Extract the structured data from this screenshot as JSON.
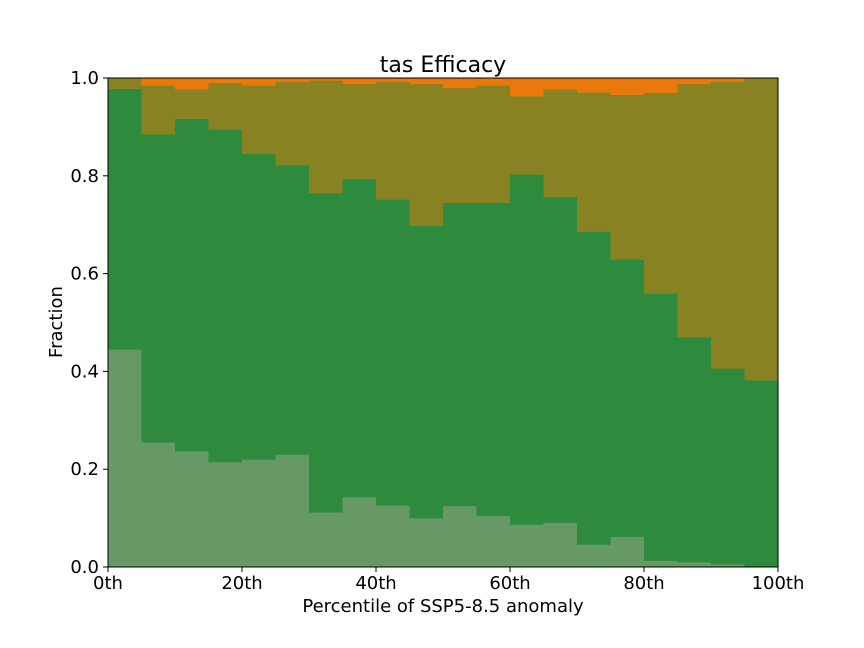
{
  "chart_data": {
    "type": "bar",
    "stacked": true,
    "title": "tas Efficacy",
    "xlabel": "Percentile of SSP5-8.5 anomaly",
    "ylabel": "Fraction",
    "xlim": [
      0,
      100
    ],
    "ylim": [
      0,
      1
    ],
    "bin_width": 5,
    "x": [
      0,
      5,
      10,
      15,
      20,
      25,
      30,
      35,
      40,
      45,
      50,
      55,
      60,
      65,
      70,
      75,
      80,
      85,
      90,
      95
    ],
    "xticks": [
      0,
      20,
      40,
      60,
      80,
      100
    ],
    "xtick_labels": [
      "0th",
      "20th",
      "40th",
      "60th",
      "80th",
      "100th"
    ],
    "yticks": [
      0.0,
      0.2,
      0.4,
      0.6,
      0.8,
      1.0
    ],
    "ytick_labels": [
      "0.0",
      "0.2",
      "0.4",
      "0.6",
      "0.8",
      "1.0"
    ],
    "grid": false,
    "series": [
      {
        "color": "#669966",
        "values": [
          0.445,
          0.255,
          0.237,
          0.215,
          0.22,
          0.23,
          0.112,
          0.143,
          0.126,
          0.1,
          0.125,
          0.105,
          0.087,
          0.091,
          0.046,
          0.062,
          0.013,
          0.01,
          0.006,
          0.0
        ]
      },
      {
        "color": "#2e8b3e",
        "values": [
          0.533,
          0.63,
          0.68,
          0.68,
          0.625,
          0.592,
          0.653,
          0.65,
          0.626,
          0.598,
          0.62,
          0.64,
          0.716,
          0.666,
          0.64,
          0.567,
          0.547,
          0.46,
          0.4,
          0.382
        ]
      },
      {
        "color": "#888222",
        "values": [
          0.022,
          0.1,
          0.06,
          0.095,
          0.14,
          0.17,
          0.23,
          0.195,
          0.24,
          0.29,
          0.235,
          0.24,
          0.16,
          0.22,
          0.285,
          0.337,
          0.41,
          0.518,
          0.587,
          0.618
        ]
      },
      {
        "color": "#e8790a",
        "values": [
          0.0,
          0.015,
          0.023,
          0.01,
          0.015,
          0.008,
          0.005,
          0.012,
          0.008,
          0.012,
          0.02,
          0.015,
          0.037,
          0.023,
          0.029,
          0.034,
          0.03,
          0.012,
          0.007,
          0.0
        ]
      }
    ]
  }
}
